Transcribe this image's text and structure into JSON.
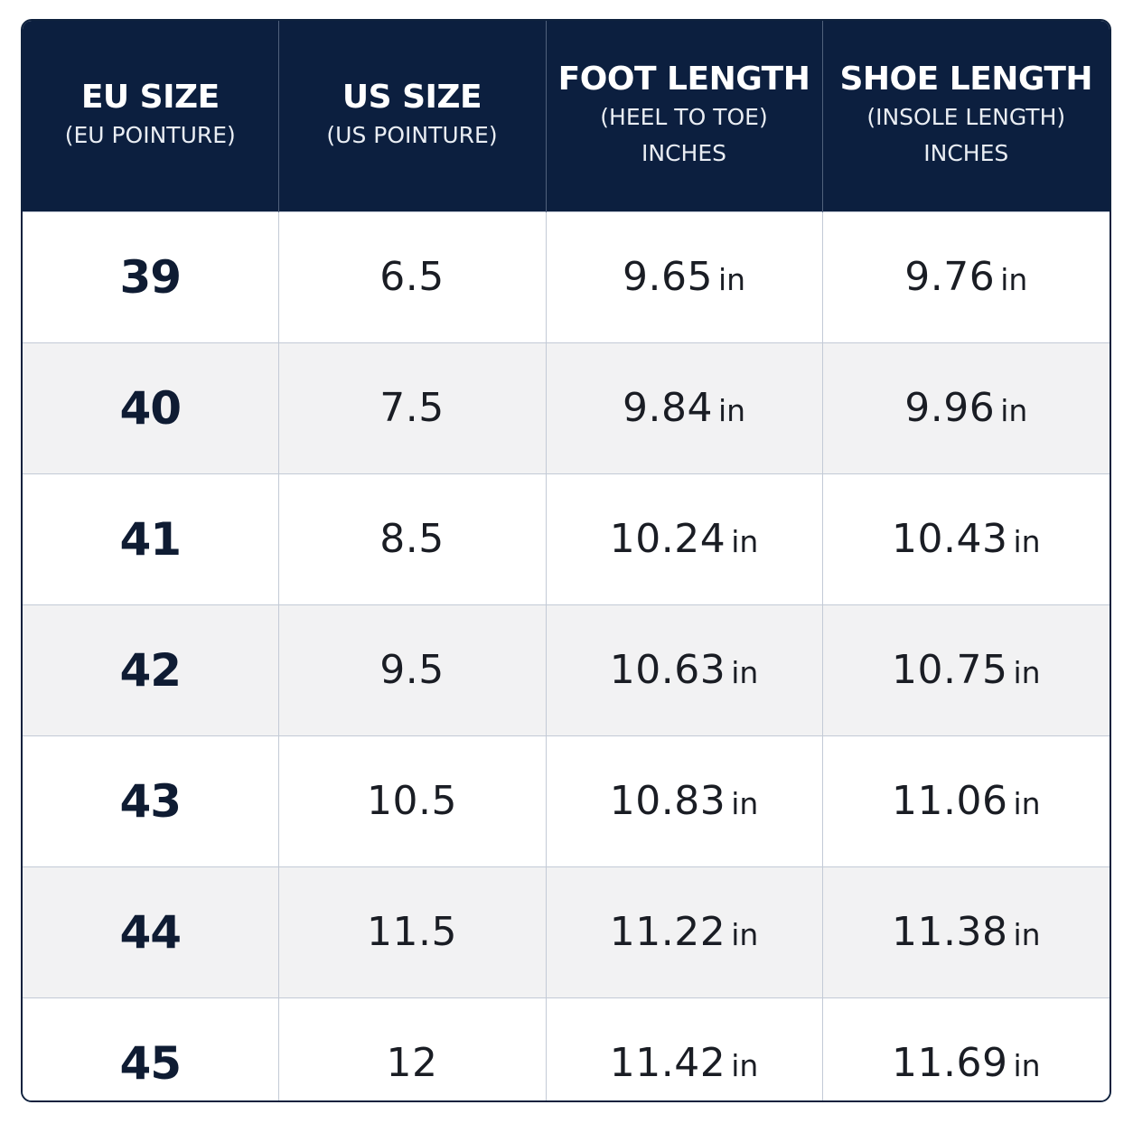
{
  "headers": [
    {
      "title": "EU SIZE",
      "sub1": "(EU POINTURE)",
      "sub2": ""
    },
    {
      "title": "US SIZE",
      "sub1": "(US POINTURE)",
      "sub2": ""
    },
    {
      "title": "FOOT LENGTH",
      "sub1": "(HEEL TO TOE)",
      "sub2": "INCHES"
    },
    {
      "title": "SHOE LENGTH",
      "sub1": "(INSOLE LENGTH)",
      "sub2": "INCHES"
    }
  ],
  "unit": "in",
  "rows": [
    {
      "eu": "39",
      "us": "6.5",
      "foot": "9.65",
      "shoe": "9.76"
    },
    {
      "eu": "40",
      "us": "7.5",
      "foot": "9.84",
      "shoe": "9.96"
    },
    {
      "eu": "41",
      "us": "8.5",
      "foot": "10.24",
      "shoe": "10.43"
    },
    {
      "eu": "42",
      "us": "9.5",
      "foot": "10.63",
      "shoe": "10.75"
    },
    {
      "eu": "43",
      "us": "10.5",
      "foot": "10.83",
      "shoe": "11.06"
    },
    {
      "eu": "44",
      "us": "11.5",
      "foot": "11.22",
      "shoe": "11.38"
    },
    {
      "eu": "45",
      "us": "12",
      "foot": "11.42",
      "shoe": "11.69"
    }
  ],
  "colors": {
    "header_bg": "#0c1f3f",
    "header_text": "#ffffff",
    "row_alt_bg": "#f2f2f3",
    "grid_line": "#c3cad6"
  }
}
